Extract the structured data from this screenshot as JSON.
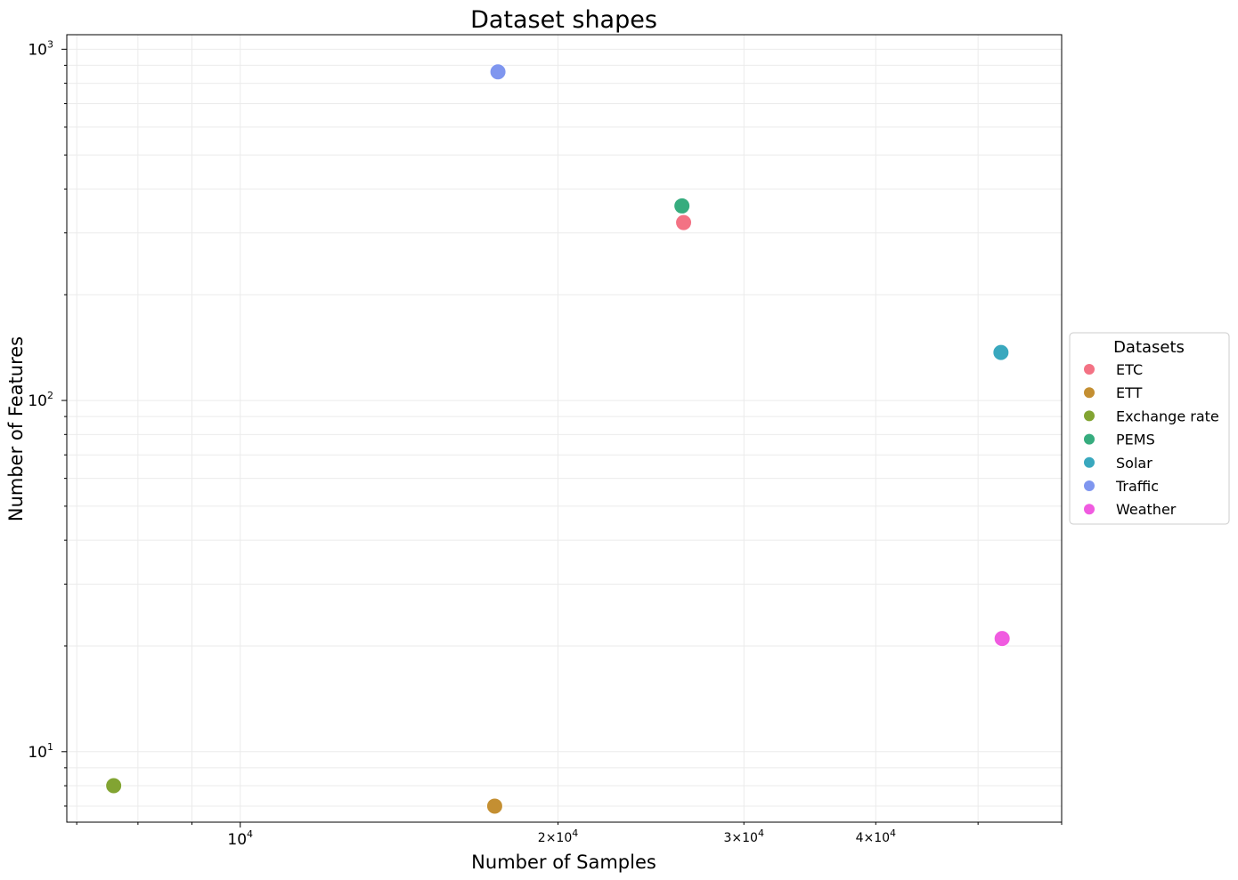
{
  "chart_data": {
    "type": "scatter",
    "title": "Dataset shapes",
    "xlabel": "Number of Samples",
    "ylabel": "Number of Features",
    "xscale": "log",
    "yscale": "log",
    "xlim": [
      6850,
      60000
    ],
    "ylim": [
      6.3,
      1100
    ],
    "grid": true,
    "legend": {
      "title": "Datasets",
      "placement": "center-right-outside"
    },
    "x_ticks": [
      {
        "value": 10000,
        "base": "10",
        "exp": "4",
        "coef": ""
      },
      {
        "value": 20000,
        "base": "10",
        "exp": "4",
        "coef": "2×"
      },
      {
        "value": 30000,
        "base": "10",
        "exp": "4",
        "coef": "3×"
      },
      {
        "value": 40000,
        "base": "10",
        "exp": "4",
        "coef": "4×"
      }
    ],
    "y_ticks": [
      {
        "value": 10,
        "base": "10",
        "exp": "1"
      },
      {
        "value": 100,
        "base": "10",
        "exp": "2"
      },
      {
        "value": 1000,
        "base": "10",
        "exp": "3"
      }
    ],
    "series": [
      {
        "name": "ETC",
        "color": "#f37284",
        "x": [
          26304
        ],
        "y": [
          321
        ]
      },
      {
        "name": "ETT",
        "color": "#c48f32",
        "x": [
          17420
        ],
        "y": [
          7
        ]
      },
      {
        "name": "Exchange rate",
        "color": "#82a432",
        "x": [
          7588
        ],
        "y": [
          8
        ]
      },
      {
        "name": "PEMS",
        "color": "#36ac7e",
        "x": [
          26208
        ],
        "y": [
          358
        ]
      },
      {
        "name": "Solar",
        "color": "#39a8be",
        "x": [
          52560
        ],
        "y": [
          137
        ]
      },
      {
        "name": "Traffic",
        "color": "#7f96ef",
        "x": [
          17544
        ],
        "y": [
          862
        ]
      },
      {
        "name": "Weather",
        "color": "#f05be0",
        "x": [
          52696
        ],
        "y": [
          21
        ]
      }
    ]
  }
}
